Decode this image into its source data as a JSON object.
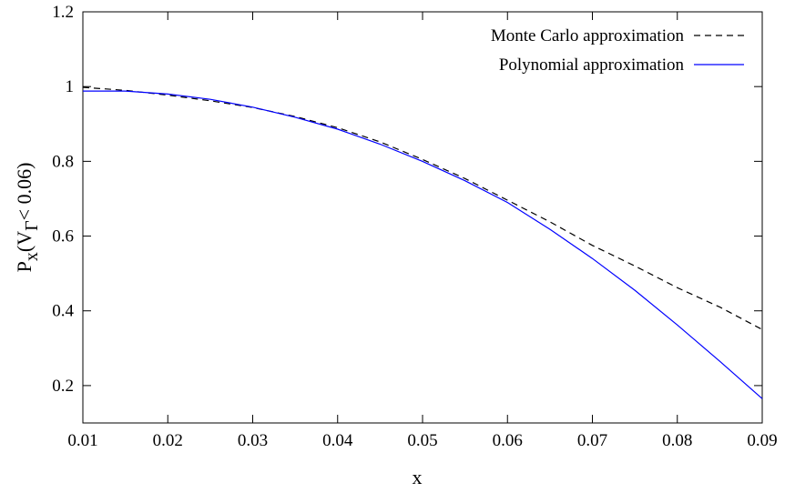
{
  "chart_data": {
    "type": "line",
    "xlabel": "x",
    "ylabel_main": "P",
    "ylabel_sub": "x",
    "ylabel_rest": "(V",
    "ylabel_sub2": "Γ",
    "ylabel_end": "< 0.06)",
    "xlim": [
      0.01,
      0.09
    ],
    "ylim": [
      0.1,
      1.2
    ],
    "xticks": [
      "0.01",
      "0.02",
      "0.03",
      "0.04",
      "0.05",
      "0.06",
      "0.07",
      "0.08",
      "0.09"
    ],
    "yticks": [
      "0.2",
      "0.4",
      "0.6",
      "0.8",
      "1",
      "1.2"
    ],
    "grid": false,
    "legend_position": "top-right",
    "series": [
      {
        "name": "Monte Carlo approximation",
        "style": "dashed",
        "color": "#000000",
        "x": [
          0.01,
          0.015,
          0.02,
          0.025,
          0.03,
          0.035,
          0.04,
          0.045,
          0.05,
          0.055,
          0.06,
          0.065,
          0.07,
          0.075,
          0.08,
          0.085,
          0.09
        ],
        "y": [
          0.998,
          0.99,
          0.977,
          0.962,
          0.944,
          0.92,
          0.89,
          0.852,
          0.805,
          0.754,
          0.696,
          0.638,
          0.575,
          0.52,
          0.462,
          0.41,
          0.35
        ]
      },
      {
        "name": "Polynomial approximation",
        "style": "solid",
        "color": "#0000ff",
        "x": [
          0.01,
          0.015,
          0.02,
          0.025,
          0.03,
          0.035,
          0.04,
          0.045,
          0.05,
          0.055,
          0.06,
          0.065,
          0.07,
          0.075,
          0.08,
          0.085,
          0.09
        ],
        "y": [
          0.988,
          0.988,
          0.98,
          0.966,
          0.945,
          0.918,
          0.886,
          0.846,
          0.8,
          0.748,
          0.69,
          0.618,
          0.54,
          0.455,
          0.362,
          0.265,
          0.165
        ]
      }
    ]
  }
}
